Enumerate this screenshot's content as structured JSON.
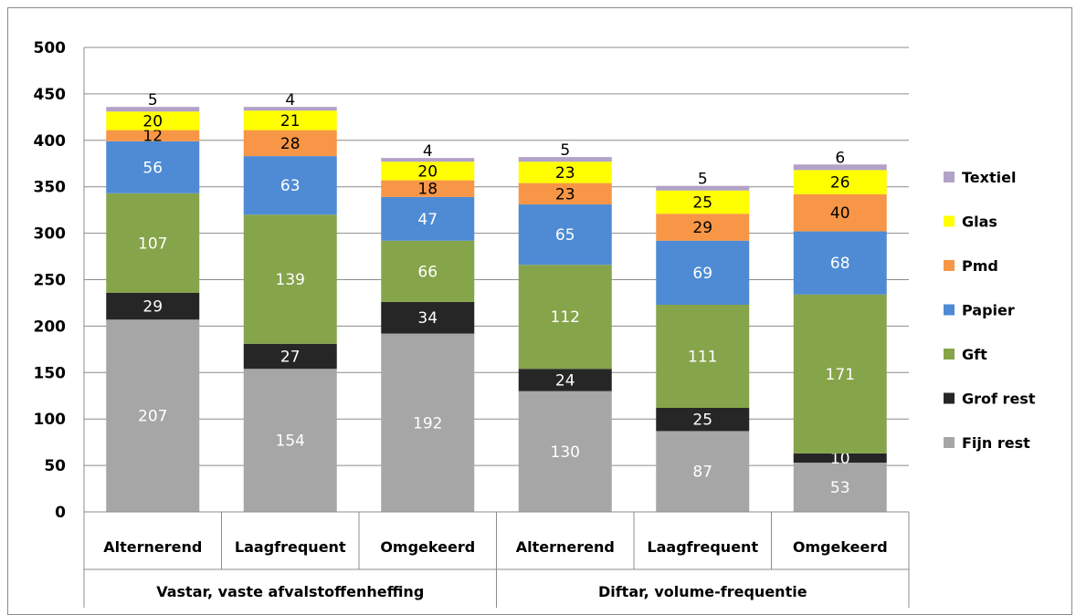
{
  "chart_data": {
    "type": "bar",
    "stacked": true,
    "ylim": [
      0,
      500
    ],
    "yticks": [
      0,
      50,
      100,
      150,
      200,
      250,
      300,
      350,
      400,
      450,
      500
    ],
    "grid": true,
    "legend_position": "right",
    "categories": [
      "Alternerend",
      "Laagfrequent",
      "Omgekeerd",
      "Alternerend",
      "Laagfrequent",
      "Omgekeerd"
    ],
    "groups": [
      {
        "label": "Vastar, vaste afvalstoffenheffing",
        "span": [
          0,
          2
        ]
      },
      {
        "label": "Diftar, volume-frequentie",
        "span": [
          3,
          5
        ]
      }
    ],
    "series": [
      {
        "name": "Fijn rest",
        "color": "#a6a6a6",
        "label_color": "#ffffff",
        "values": [
          207,
          154,
          192,
          130,
          87,
          53
        ]
      },
      {
        "name": "Grof rest",
        "color": "#262626",
        "label_color": "#ffffff",
        "values": [
          29,
          27,
          34,
          24,
          25,
          10
        ]
      },
      {
        "name": "Gft",
        "color": "#86a44a",
        "label_color": "#ffffff",
        "values": [
          107,
          139,
          66,
          112,
          111,
          171
        ]
      },
      {
        "name": "Papier",
        "color": "#4e8bd4",
        "label_color": "#ffffff",
        "values": [
          56,
          63,
          47,
          65,
          69,
          68
        ]
      },
      {
        "name": "Pmd",
        "color": "#f79646",
        "label_color": "#000000",
        "values": [
          12,
          28,
          18,
          23,
          29,
          40
        ]
      },
      {
        "name": "Glas",
        "color": "#ffff00",
        "label_color": "#000000",
        "values": [
          20,
          21,
          20,
          23,
          25,
          26
        ]
      },
      {
        "name": "Textiel",
        "color": "#b3a2c7",
        "label_color": "#000000",
        "values": [
          5,
          4,
          4,
          5,
          5,
          6
        ]
      }
    ]
  }
}
